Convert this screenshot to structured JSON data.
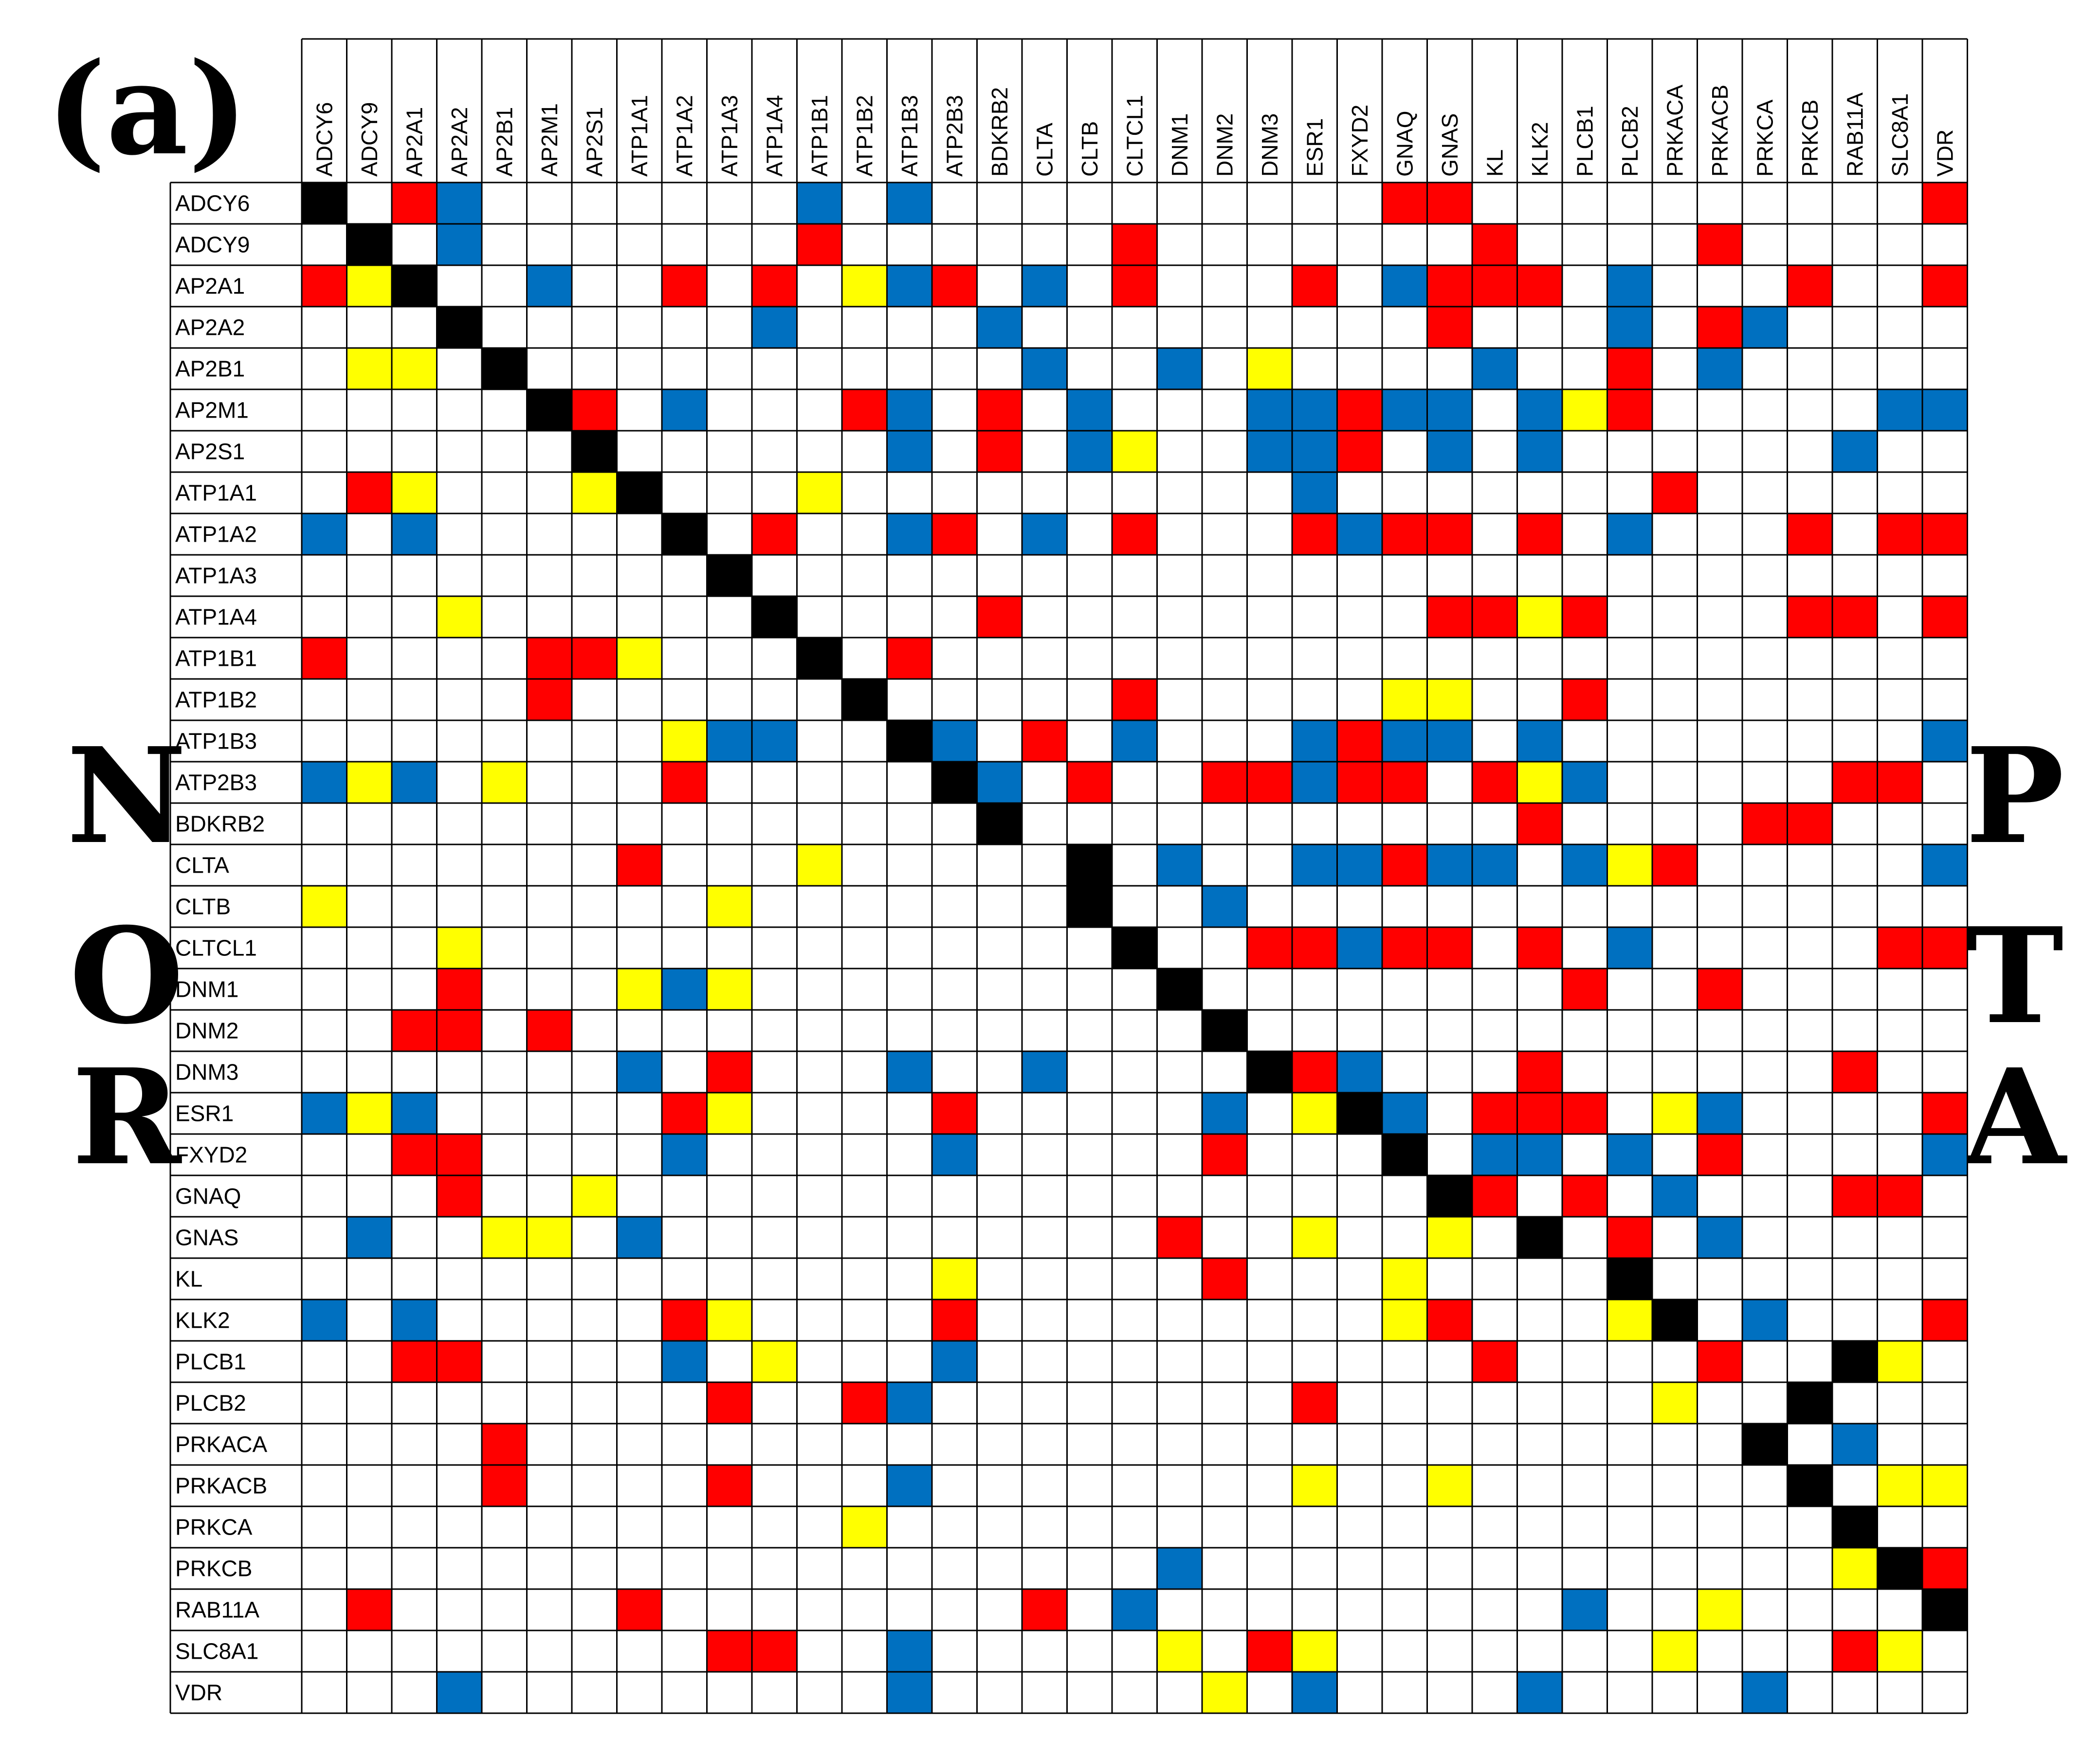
{
  "panel_label": "(a)",
  "side_labels": {
    "left": [
      "N",
      "O",
      "R"
    ],
    "right": [
      "P",
      "T",
      "A"
    ]
  },
  "colors": {
    "diagonal": "#000000",
    "R": "#FF0000",
    "B": "#0070C0",
    "Y": "#FFFF00",
    "empty": "#FFFFFF",
    "grid": "#000000"
  },
  "chart_data": {
    "type": "heatmap",
    "genes": [
      "ADCY6",
      "ADCY9",
      "AP2A1",
      "AP2A2",
      "AP2B1",
      "AP2M1",
      "AP2S1",
      "ATP1A1",
      "ATP1A2",
      "ATP1A3",
      "ATP1A4",
      "ATP1B1",
      "ATP1B2",
      "ATP1B3",
      "ATP2B3",
      "BDKRB2",
      "CLTA",
      "CLTB",
      "CLTCL1",
      "DNM1",
      "DNM2",
      "DNM3",
      "ESR1",
      "FXYD2",
      "GNAQ",
      "GNAS",
      "KL",
      "KLK2",
      "PLCB1",
      "PLCB2",
      "PRKACA",
      "PRKACB",
      "PRKCA",
      "PRKCB",
      "RAB11A",
      "SLC8A1",
      "VDR"
    ],
    "legend": {
      "X": "diagonal",
      "R": "red",
      "B": "blue",
      "Y": "yellow",
      ".": "empty"
    },
    "matrix": [
      "X.RB.......B.B..........RR..........R",
      ".X.B.......R......R.......R....R.....",
      "RYX..B..R.R.YBR.B.R...R.BRRR.B...R..R",
      "...X......B....B.........R...B.RB....",
      ".YY.X...........B..B.Y....B..R.B.....",
      ".....XR.B...RB.R.B...BBRBB.BYR.....BB",
      "......X......B.R.BY..BBR.B.B......B..",
      ".RY...YX...Y..........B.......R......",
      "B.B.....X.R..BR.B.R...RBRR.R.B...R.RR",
      ".........X...........................",
      "...Y......X....R.........RRYR....RR.R",
      "R....RRY...X.R.......................",
      ".....R......X.....R.....YY..R........",
      "........YBB..XB.R.B...BRBB.B........B",
      "BYB.Y...R.....XB.R..RRBRR.RYB.....RR",
      "...............X...........R....RR...",
      ".......R...Y.....X.B..BBRBB.BYR.....BB",
      "Y........Y.......X..B................",
      "...Y..............X..RRBRR.R.B.....RR",
      "...R...YBY.........X........R..R.....",
      "..RR.R..............X................",
      ".......B.R...B..B....XRB...R......R..",
      "BYB.....RY....R.....B.YXB.RRR.YB....RR",
      "..RR....B.....B.....R...X.BB.B.R....BB",
      "...R..Y..................XR.R.B...RR.R",
      ".B..YY.B...........R..Y..Y.X.R.B.....R",
      "..............Y.....R...Y....X........",
      "B.B.....RY....R.........YR...YX.B...RR",
      "..RR....B.Y...B...........R....R..XY..",
      ".........R..RB........R.......Y..X...BB",
      "....R...........................X.B..",
      "....R....R...B........Y..Y.......X.YY",
      "............Y.....................X..",
      "...................B..............YXR.R",
      ".R.....R........R.B.........B..Y....X.",
      ".........RR..B.....Y.RY.......Y...RY.X",
      "...B.........B......Y.B....B....B.....X"
    ]
  }
}
